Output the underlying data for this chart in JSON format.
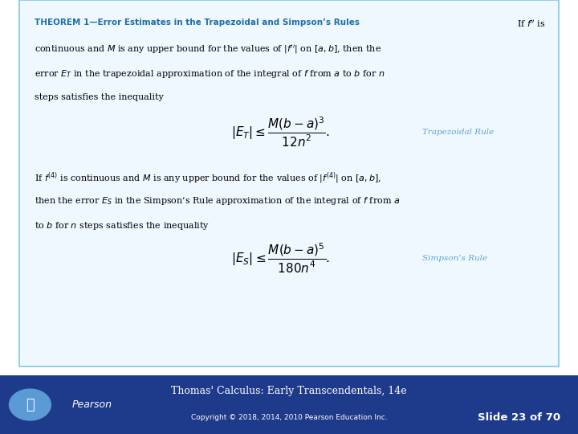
{
  "bg_color": "#ffffff",
  "footer_bg_color": "#1e3a8a",
  "footer_text_color": "#ffffff",
  "footer_title": "Thomas' Calculus: Early Transcendentals, 14e",
  "footer_copyright": "Copyright © 2018, 2014, 2010 Pearson Education Inc.",
  "footer_slide": "Slide 23 of 70",
  "box_border_color": "#7ec8e3",
  "box_fill_color": "#f0f8ff",
  "theorem_color": "#1a6fa8",
  "body_color": "#000000",
  "label_color": "#5ba3c9",
  "theorem_title": "THEOREM 1—Error Estimates in the Trapezoidal and Simpson’s Rules",
  "if_f_is": "If $f''$ is",
  "line1": "continuous and $M$ is any upper bound for the values of $|f''|$ on $[a, b]$, then the",
  "line2": "error $E_T$ in the trapezoidal approximation of the integral of $f$ from $a$ to $b$ for $n$",
  "line3": "steps satisfies the inequality",
  "eq1": "$|E_T| \\leq \\dfrac{M(b-a)^3}{12n^2}.$",
  "label1": "Trapezoidal Rule",
  "para2_line1": "If $f^{(4)}$ is continuous and $M$ is any upper bound for the values of $|f^{(4)}|$ on $[a, b]$,",
  "line4": "then the error $E_S$ in the Simpson’s Rule approximation of the integral of $f$ from $a$",
  "line5": "to $b$ for $n$ steps satisfies the inequality",
  "eq2": "$|E_S| \\leq \\dfrac{M(b-a)^5}{180n^4}.$",
  "label2": "Simpson’s Rule",
  "pearson_label": "Pearson"
}
